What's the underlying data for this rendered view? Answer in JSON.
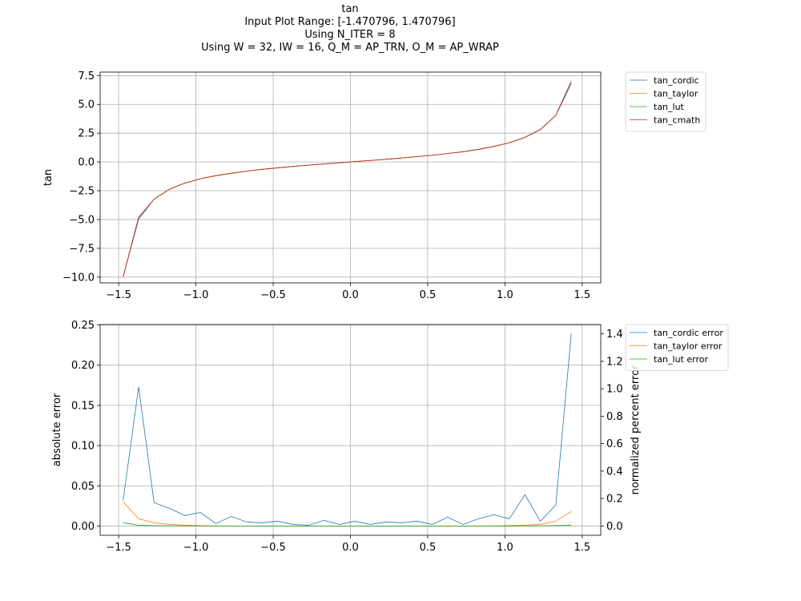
{
  "title_lines": [
    "tan",
    "Input Plot Range: [-1.470796, 1.470796]",
    "Using N_ITER = 8",
    "Using W = 32, IW = 16, Q_M = AP_TRN, O_M = AP_WRAP"
  ],
  "chart_data": [
    {
      "type": "line",
      "ylabel": "tan",
      "xlim": [
        -1.62,
        1.62
      ],
      "ylim": [
        -10.5,
        7.8
      ],
      "xticks": [
        -1.5,
        -1.0,
        -0.5,
        0.0,
        0.5,
        1.0,
        1.5
      ],
      "xtick_labels": [
        "−1.5",
        "−1.0",
        "−0.5",
        "0.0",
        "0.5",
        "1.0",
        "1.5"
      ],
      "yticks": [
        -10.0,
        -7.5,
        -5.0,
        -2.5,
        0.0,
        2.5,
        5.0,
        7.5
      ],
      "ytick_labels": [
        "−10.0",
        "−7.5",
        "−5.0",
        "−2.5",
        "0.0",
        "2.5",
        "5.0",
        "7.5"
      ],
      "grid": true,
      "legend_position": "outside-right-top",
      "x": [
        -1.4708,
        -1.3708,
        -1.2708,
        -1.1708,
        -1.0708,
        -0.9708,
        -0.8708,
        -0.7708,
        -0.6708,
        -0.5708,
        -0.4708,
        -0.3708,
        -0.2708,
        -0.1708,
        -0.0708,
        0.0292,
        0.1292,
        0.2292,
        0.3292,
        0.4292,
        0.5292,
        0.6292,
        0.7292,
        0.8292,
        0.9292,
        1.0292,
        1.1292,
        1.2292,
        1.3292,
        1.4292
      ],
      "series": [
        {
          "name": "tan_cordic",
          "color": "#1f77b4",
          "values": [
            -9.97,
            -4.98,
            -3.23,
            -2.36,
            -1.82,
            -1.46,
            -1.19,
            -0.98,
            -0.8,
            -0.64,
            -0.51,
            -0.39,
            -0.28,
            -0.17,
            -0.07,
            0.03,
            0.13,
            0.23,
            0.34,
            0.46,
            0.58,
            0.73,
            0.89,
            1.09,
            1.35,
            1.67,
            2.13,
            2.8,
            4.03,
            6.8
          ]
        },
        {
          "name": "tan_taylor",
          "color": "#ff7f0e",
          "values": [
            -9.97,
            -4.8,
            -3.24,
            -2.37,
            -1.83,
            -1.46,
            -1.19,
            -0.98,
            -0.8,
            -0.64,
            -0.51,
            -0.39,
            -0.28,
            -0.17,
            -0.07,
            0.03,
            0.13,
            0.23,
            0.34,
            0.46,
            0.58,
            0.73,
            0.89,
            1.09,
            1.35,
            1.67,
            2.14,
            2.82,
            4.05,
            7.0
          ]
        },
        {
          "name": "tan_lut",
          "color": "#2ca02c",
          "values": [
            -9.97,
            -4.81,
            -3.24,
            -2.37,
            -1.83,
            -1.46,
            -1.19,
            -0.98,
            -0.8,
            -0.64,
            -0.51,
            -0.39,
            -0.28,
            -0.17,
            -0.07,
            0.03,
            0.13,
            0.23,
            0.34,
            0.46,
            0.58,
            0.73,
            0.89,
            1.09,
            1.35,
            1.67,
            2.14,
            2.82,
            4.05,
            7.0
          ]
        },
        {
          "name": "tan_cmath",
          "color": "#d62728",
          "values": [
            -9.97,
            -4.81,
            -3.24,
            -2.37,
            -1.83,
            -1.46,
            -1.19,
            -0.98,
            -0.8,
            -0.64,
            -0.51,
            -0.39,
            -0.28,
            -0.17,
            -0.07,
            0.03,
            0.13,
            0.23,
            0.34,
            0.46,
            0.58,
            0.73,
            0.89,
            1.09,
            1.35,
            1.67,
            2.14,
            2.82,
            4.05,
            7.0
          ]
        }
      ]
    },
    {
      "type": "line",
      "ylabel": "absolute error",
      "y2label": "normalized percent error",
      "xlim": [
        -1.62,
        1.62
      ],
      "ylim": [
        -0.0115,
        0.2505
      ],
      "y2lim": [
        -0.068,
        1.468
      ],
      "xticks": [
        -1.5,
        -1.0,
        -0.5,
        0.0,
        0.5,
        1.0,
        1.5
      ],
      "xtick_labels": [
        "−1.5",
        "−1.0",
        "−0.5",
        "0.0",
        "0.5",
        "1.0",
        "1.5"
      ],
      "yticks": [
        0.0,
        0.05,
        0.1,
        0.15,
        0.2,
        0.25
      ],
      "ytick_labels": [
        "0.00",
        "0.05",
        "0.10",
        "0.15",
        "0.20",
        "0.25"
      ],
      "y2ticks": [
        0.0,
        0.2,
        0.4,
        0.6,
        0.8,
        1.0,
        1.2,
        1.4
      ],
      "y2tick_labels": [
        "0.0",
        "0.2",
        "0.4",
        "0.6",
        "0.8",
        "1.0",
        "1.2",
        "1.4"
      ],
      "grid": true,
      "legend_position": "outside-right-top",
      "x": [
        -1.4708,
        -1.3708,
        -1.2708,
        -1.1708,
        -1.0708,
        -0.9708,
        -0.8708,
        -0.7708,
        -0.6708,
        -0.5708,
        -0.4708,
        -0.3708,
        -0.2708,
        -0.1708,
        -0.0708,
        0.0292,
        0.1292,
        0.2292,
        0.3292,
        0.4292,
        0.5292,
        0.6292,
        0.7292,
        0.8292,
        0.9292,
        1.0292,
        1.1292,
        1.2292,
        1.3292,
        1.4292
      ],
      "series": [
        {
          "name": "tan_cordic error",
          "color": "#1f77b4",
          "values": [
            0.032,
            0.173,
            0.029,
            0.022,
            0.013,
            0.017,
            0.003,
            0.012,
            0.005,
            0.004,
            0.006,
            0.002,
            0.001,
            0.007,
            0.002,
            0.006,
            0.002,
            0.005,
            0.004,
            0.006,
            0.002,
            0.011,
            0.002,
            0.009,
            0.014,
            0.009,
            0.039,
            0.006,
            0.026,
            0.239
          ]
        },
        {
          "name": "tan_taylor error",
          "color": "#ff7f0e",
          "values": [
            0.03,
            0.009,
            0.004,
            0.002,
            0.001,
            0.0005,
            0.0002,
            0.0001,
            0.0,
            0.0,
            0.0,
            0.0,
            0.0,
            0.0,
            0.0,
            0.0,
            0.0,
            0.0,
            0.0,
            0.0,
            0.0,
            0.0,
            0.0,
            0.0,
            0.0002,
            0.0005,
            0.001,
            0.002,
            0.006,
            0.018
          ]
        },
        {
          "name": "tan_lut error",
          "color": "#2ca02c",
          "values": [
            0.004,
            0.001,
            0.0005,
            0.0003,
            0.0002,
            0.0001,
            0.0,
            0.0,
            0.0,
            0.0,
            0.0,
            0.0,
            0.0,
            0.0,
            0.0,
            0.0,
            0.0,
            0.0,
            0.0,
            0.0,
            0.0,
            0.0,
            0.0,
            0.0,
            0.0,
            0.0,
            0.0002,
            0.0003,
            0.0005,
            0.001
          ]
        }
      ]
    }
  ]
}
